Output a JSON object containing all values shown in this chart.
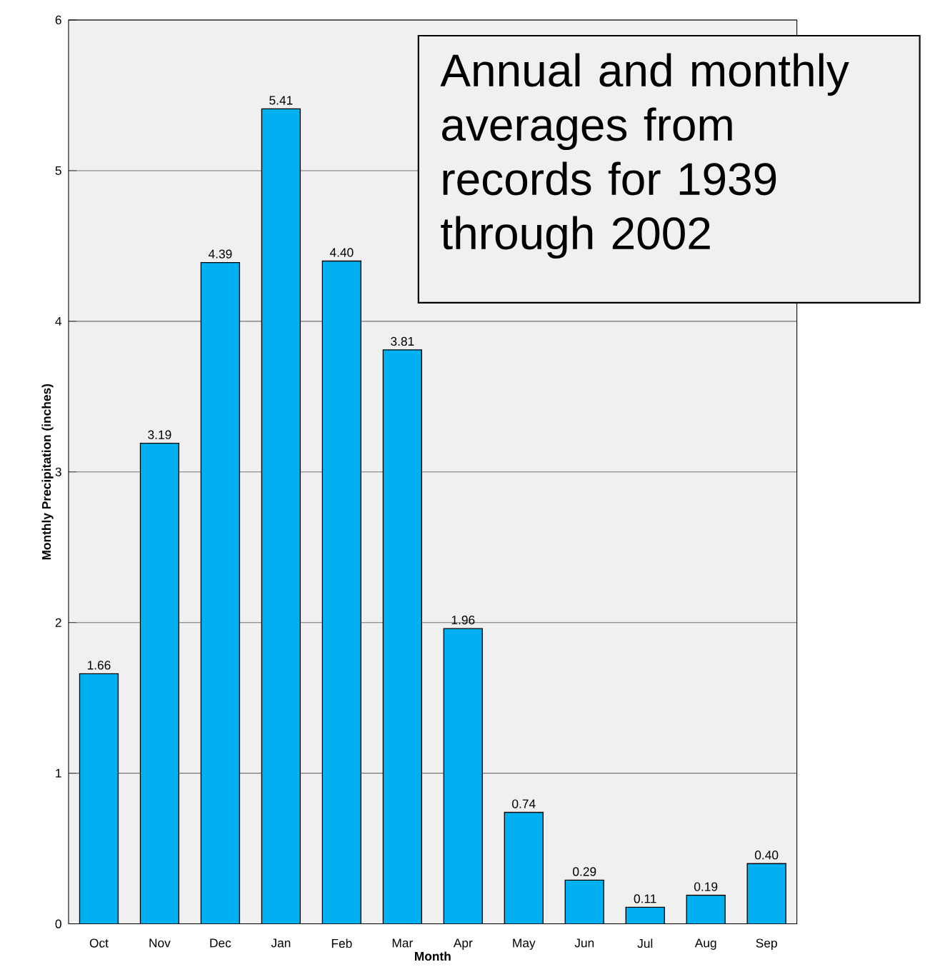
{
  "chart_data": {
    "type": "bar",
    "xlabel": "Month",
    "ylabel": "Monthly Precipitation (inches)",
    "categories": [
      "Oct",
      "Nov",
      "Dec",
      "Jan",
      "Feb",
      "Mar",
      "Apr",
      "May",
      "Jun",
      "Jul",
      "Aug",
      "Sep"
    ],
    "values": [
      1.66,
      3.19,
      4.39,
      5.41,
      4.4,
      3.81,
      1.96,
      0.74,
      0.29,
      0.11,
      0.19,
      0.4
    ],
    "value_labels": [
      "1.66",
      "3.19",
      "4.39",
      "5.41",
      "4.40",
      "3.81",
      "1.96",
      "0.74",
      "0.29",
      "0.11",
      "0.19",
      "0.40"
    ],
    "color": "#00b0f0",
    "ylim": [
      0,
      6
    ],
    "yticks": [
      0,
      1,
      2,
      3,
      4,
      5,
      6
    ],
    "grid": "y",
    "annotations": [
      "Annual and monthly averages from records for 1939 through 2002"
    ]
  }
}
